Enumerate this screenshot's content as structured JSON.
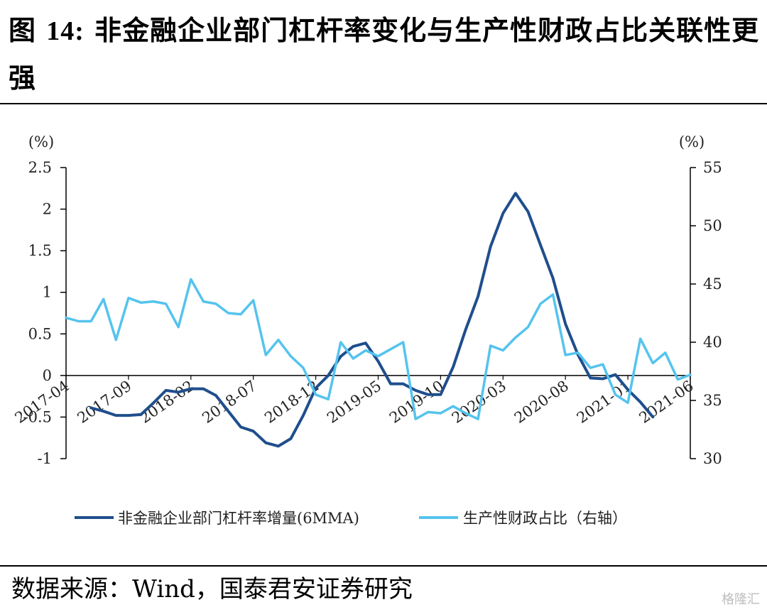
{
  "header": {
    "fig_prefix": "图",
    "fig_number": "14:",
    "title": "非金融企业部门杠杆率变化与生产性财政占比关联性更强"
  },
  "source": "数据来源：Wind，国泰君安证券研究",
  "watermark": "格隆汇",
  "chart_data": {
    "type": "line",
    "title": "",
    "left_unit": "(%)",
    "right_unit": "(%)",
    "left_axis": {
      "ylim": [
        -1,
        2.5
      ],
      "ticks": [
        "2.5",
        "2",
        "1.5",
        "1",
        "0.5",
        "0",
        "-0.5",
        "-1"
      ]
    },
    "right_axis": {
      "ylim": [
        30,
        55
      ],
      "ticks": [
        "55",
        "50",
        "45",
        "40",
        "35",
        "30"
      ]
    },
    "x_tick_labels": [
      "2017-04",
      "2017-09",
      "2018-02",
      "2018-07",
      "2018-12",
      "2019-05",
      "2019-10",
      "2020-03",
      "2020-08",
      "2021-01",
      "2021-06"
    ],
    "x": [
      "2017-04",
      "2017-05",
      "2017-06",
      "2017-07",
      "2017-08",
      "2017-09",
      "2017-10",
      "2017-11",
      "2017-12",
      "2018-01",
      "2018-02",
      "2018-03",
      "2018-04",
      "2018-05",
      "2018-06",
      "2018-07",
      "2018-08",
      "2018-09",
      "2018-10",
      "2018-11",
      "2018-12",
      "2019-01",
      "2019-02",
      "2019-03",
      "2019-04",
      "2019-05",
      "2019-06",
      "2019-07",
      "2019-08",
      "2019-09",
      "2019-10",
      "2019-11",
      "2019-12",
      "2020-01",
      "2020-02",
      "2020-03",
      "2020-04",
      "2020-05",
      "2020-06",
      "2020-07",
      "2020-08",
      "2020-09",
      "2020-10",
      "2020-11",
      "2020-12",
      "2021-01",
      "2021-02",
      "2021-03",
      "2021-04",
      "2021-05",
      "2021-06"
    ],
    "series": [
      {
        "name": "非金融企业部门杠杆率增量(6MMA)",
        "axis": "left",
        "color": "#1f4e8c",
        "values": [
          null,
          null,
          -0.39,
          -0.43,
          -0.48,
          -0.48,
          -0.47,
          -0.33,
          -0.18,
          -0.2,
          -0.16,
          -0.16,
          -0.24,
          -0.43,
          -0.62,
          -0.67,
          -0.81,
          -0.85,
          -0.76,
          -0.48,
          -0.15,
          0.0,
          0.23,
          0.35,
          0.39,
          0.17,
          -0.1,
          -0.1,
          -0.18,
          -0.23,
          -0.23,
          0.1,
          0.55,
          0.95,
          1.55,
          1.95,
          2.19,
          1.97,
          1.57,
          1.17,
          0.62,
          0.25,
          -0.03,
          -0.04,
          0.01,
          -0.17,
          -0.32,
          -0.5,
          null,
          null,
          null
        ]
      },
      {
        "name": "生产性财政占比（右轴）",
        "axis": "right",
        "color": "#55c3ee",
        "values": [
          42.1,
          41.8,
          41.8,
          43.7,
          40.2,
          43.8,
          43.4,
          43.5,
          43.3,
          41.3,
          45.4,
          43.5,
          43.3,
          42.5,
          42.4,
          43.6,
          38.9,
          40.2,
          38.8,
          37.8,
          35.5,
          35.1,
          40.0,
          38.6,
          39.3,
          38.8,
          39.4,
          40.0,
          33.4,
          34.0,
          33.9,
          34.5,
          33.9,
          33.4,
          39.7,
          39.3,
          40.4,
          41.3,
          43.3,
          44.1,
          38.9,
          39.1,
          37.8,
          38.1,
          35.5,
          34.8,
          40.3,
          38.2,
          39.1,
          36.8,
          37.2
        ]
      }
    ],
    "legend_position": "bottom"
  }
}
